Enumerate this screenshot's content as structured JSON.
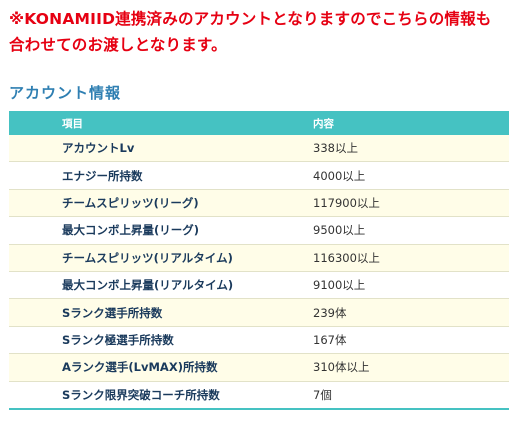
{
  "notice": {
    "line1": "※KONAMIID連携済みのアカウントとなりますのでこちらの情報も",
    "line2": "合わせてのお渡しとなります。"
  },
  "section_title": "アカウント情報",
  "table": {
    "headers": {
      "item": "項目",
      "value": "内容"
    },
    "rows": [
      {
        "item": "アカウントLv",
        "value": "338以上"
      },
      {
        "item": "エナジー所持数",
        "value": "4000以上"
      },
      {
        "item": "チームスピリッツ(リーグ)",
        "value": "117900以上"
      },
      {
        "item": "最大コンボ上昇量(リーグ)",
        "value": "9500以上"
      },
      {
        "item": "チームスピリッツ(リアルタイム)",
        "value": "116300以上"
      },
      {
        "item": "最大コンボ上昇量(リアルタイム)",
        "value": "9100以上"
      },
      {
        "item": "Sランク選手所持数",
        "value": "239体"
      },
      {
        "item": "Sランク極選手所持数",
        "value": "167体"
      },
      {
        "item": "Aランク選手(LvMAX)所持数",
        "value": "310体以上"
      },
      {
        "item": "Sランク限界突破コーチ所持数",
        "value": "7個"
      }
    ]
  },
  "colors": {
    "notice": "#e60012",
    "section_title": "#2f7fb2",
    "header_bg": "#45c2c2",
    "row_odd_bg": "#fffde8"
  }
}
